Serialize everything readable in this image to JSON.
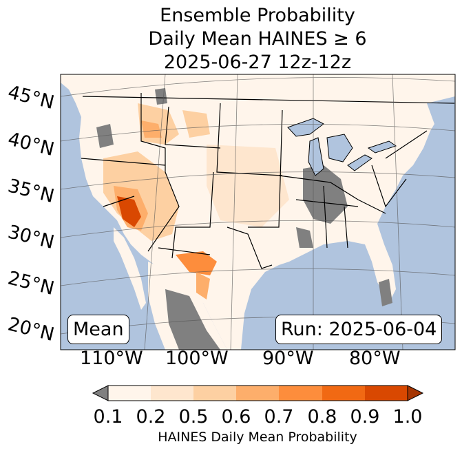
{
  "title": {
    "line1": "Ensemble Probability",
    "line2": "Daily Mean HAINES ≥ 6",
    "line3": "2025-06-27 12z-12z"
  },
  "map": {
    "lat_labels": [
      "45°N",
      "40°N",
      "35°N",
      "30°N",
      "25°N",
      "20°N"
    ],
    "lon_labels": [
      "110°W",
      "100°W",
      "90°W",
      "80°W"
    ],
    "mean_label": "Mean",
    "run_label": "Run: 2025-06-04",
    "colors": {
      "ocean": "#b0c4de",
      "land": "#fff5eb",
      "missing": "#808080"
    }
  },
  "colorbar": {
    "ticks": [
      "0.1",
      "0.2",
      "0.5",
      "0.6",
      "0.7",
      "0.8",
      "0.9",
      "1.0"
    ],
    "label": "HAINES Daily Mean Probability",
    "colors": [
      "#fff5eb",
      "#fee6ce",
      "#fdd0a2",
      "#fdae6b",
      "#fd8d3c",
      "#f16913",
      "#d94801",
      "#a63603"
    ],
    "under_color": "#808080"
  }
}
